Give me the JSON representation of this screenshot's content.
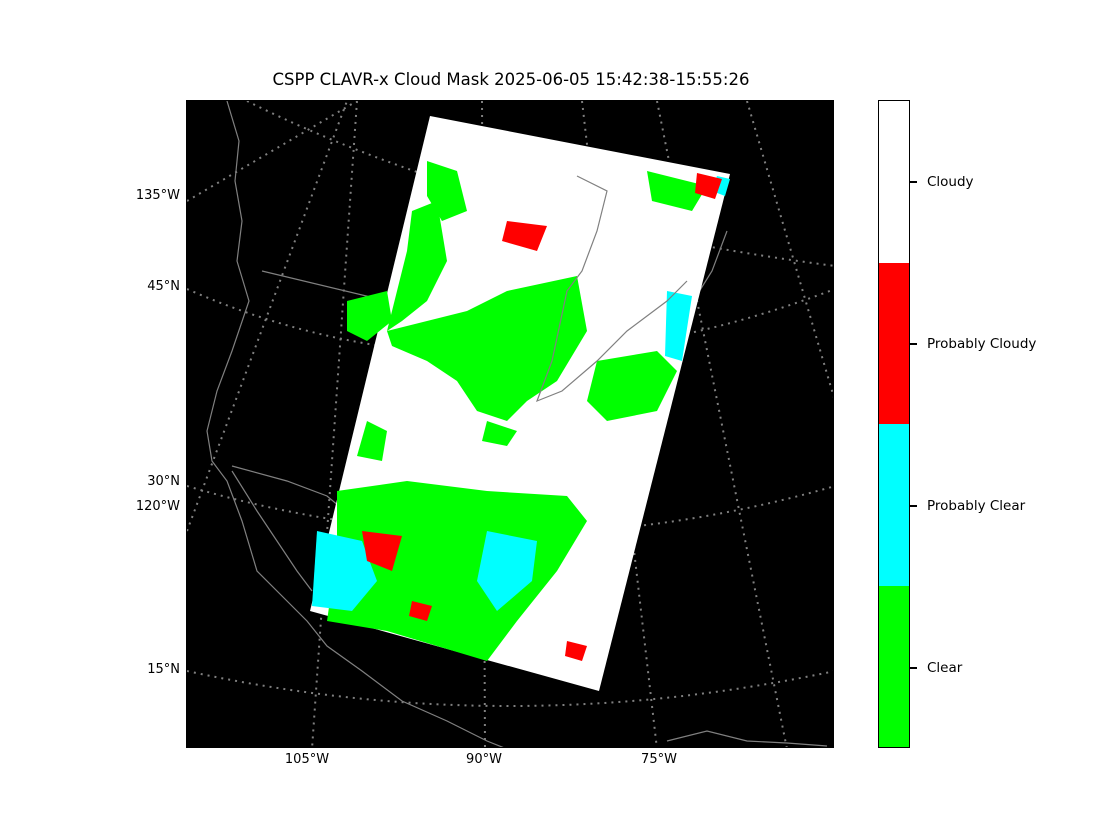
{
  "title": "CSPP CLAVR-x Cloud Mask 2025-06-05 15:42:38-15:55:26",
  "lat_labels": [
    "135°W",
    "45°N",
    "30°N",
    "120°W",
    "15°N"
  ],
  "lon_labels": [
    "105°W",
    "90°W",
    "75°W"
  ],
  "colorbar": {
    "categories": [
      {
        "label": "Cloudy",
        "color": "#ffffff"
      },
      {
        "label": "Probably Cloudy",
        "color": "#ff0000"
      },
      {
        "label": "Probably Clear",
        "color": "#00ffff"
      },
      {
        "label": "Clear",
        "color": "#00ff00"
      }
    ]
  },
  "colors": {
    "background": "#000000",
    "coastline": "#808080",
    "gridline": "#808080"
  }
}
